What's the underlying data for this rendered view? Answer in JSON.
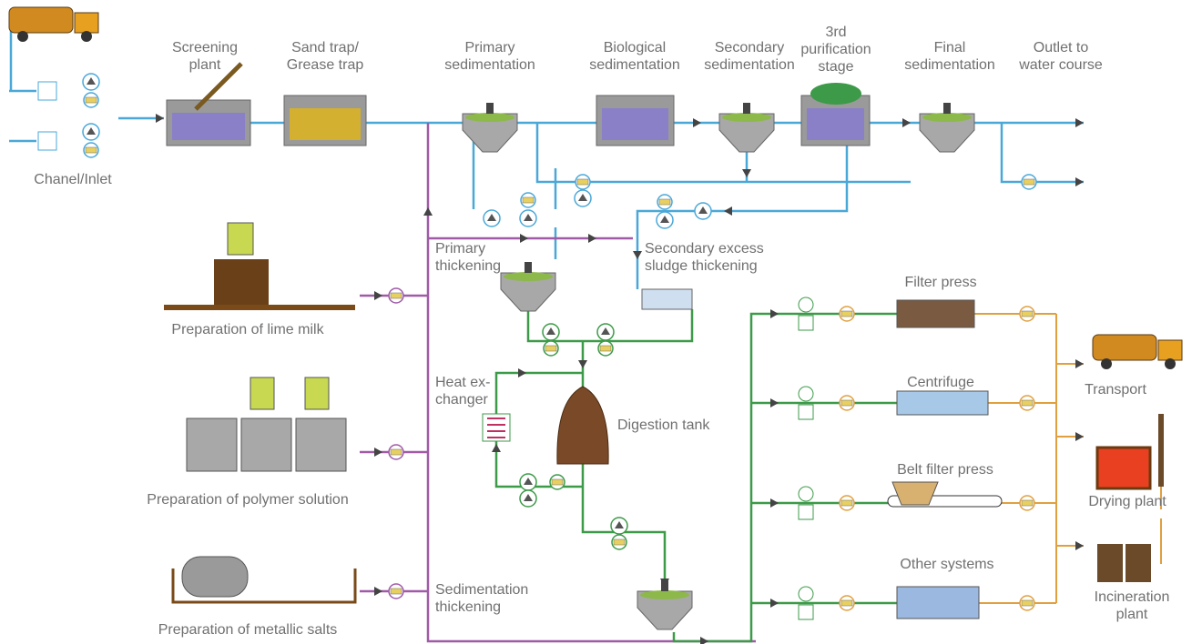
{
  "labels": [
    {
      "lines": [
        "Screening",
        "plant"
      ]
    },
    {
      "lines": [
        "Sand trap/",
        "Grease trap"
      ]
    },
    {
      "lines": [
        "Primary",
        "sedimentation"
      ]
    },
    {
      "lines": [
        "Biological",
        "sedimentation"
      ]
    },
    {
      "lines": [
        "Secondary",
        "sedimentation"
      ]
    },
    {
      "lines": [
        "3rd",
        "purification",
        "stage"
      ]
    },
    {
      "lines": [
        "Final",
        "sedimentation"
      ]
    },
    {
      "lines": [
        "Outlet to",
        "water course"
      ]
    },
    {
      "lines": [
        "Chanel/Inlet"
      ]
    },
    {
      "lines": [
        "Primary",
        "thickening"
      ]
    },
    {
      "lines": [
        "Secondary excess",
        "sludge thickening"
      ]
    },
    {
      "lines": [
        "Preparation of lime milk"
      ]
    },
    {
      "lines": [
        "Preparation of polymer solution"
      ]
    },
    {
      "lines": [
        "Preparation of metallic salts"
      ]
    },
    {
      "lines": [
        "Heat ex-",
        "changer"
      ]
    },
    {
      "lines": [
        "Digestion tank"
      ]
    },
    {
      "lines": [
        "Sedimentation",
        "thickening"
      ]
    },
    {
      "lines": [
        "Filter press"
      ]
    },
    {
      "lines": [
        "Centrifuge"
      ]
    },
    {
      "lines": [
        "Belt filter press"
      ]
    },
    {
      "lines": [
        "Other systems"
      ]
    },
    {
      "lines": [
        "Transport"
      ]
    },
    {
      "lines": [
        "Drying plant"
      ]
    },
    {
      "lines": [
        "Incineration",
        "plant"
      ]
    }
  ]
}
